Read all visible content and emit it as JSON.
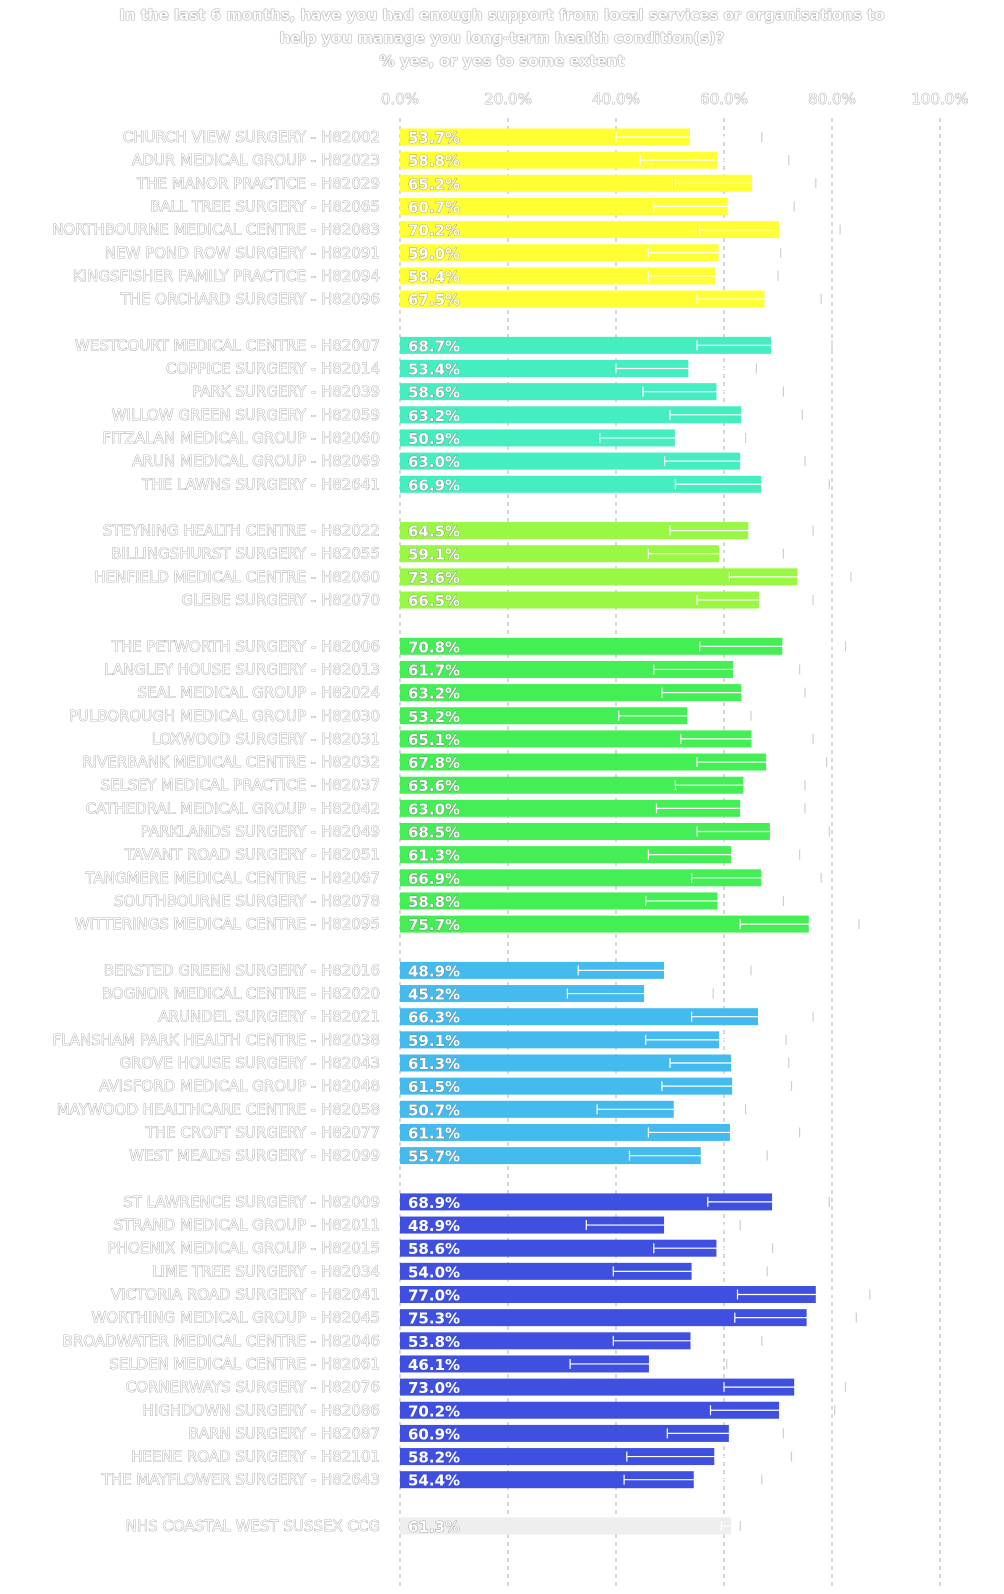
{
  "title": {
    "line1": "In the last 6 months, have you had enough support from local services or organisations to",
    "line2": "help you manage you long-term health condition(s)?",
    "line3": "% yes, or yes to some extent"
  },
  "chart_data": {
    "type": "bar",
    "orientation": "horizontal",
    "error_bars": true,
    "xlim": [
      0,
      100
    ],
    "xticks": [
      "0.0%",
      "20.0%",
      "40.0%",
      "60.0%",
      "80.0%",
      "100.0%"
    ],
    "grid": "vertical dashed",
    "groups": [
      {
        "color": "#ffff33",
        "items": [
          {
            "label": "CHURCH VIEW SURGERY - H82002",
            "value": 53.7,
            "display": "53.7%",
            "lo": 40,
            "hi": 67
          },
          {
            "label": "ADUR MEDICAL GROUP - H82023",
            "value": 58.8,
            "display": "58.8%",
            "lo": 44.5,
            "hi": 72
          },
          {
            "label": "THE MANOR PRACTICE - H82029",
            "value": 65.2,
            "display": "65.2%",
            "lo": 51,
            "hi": 77
          },
          {
            "label": "BALL TREE SURGERY - H82065",
            "value": 60.7,
            "display": "60.7%",
            "lo": 47,
            "hi": 73
          },
          {
            "label": "NORTHBOURNE MEDICAL CENTRE - H82083",
            "value": 70.2,
            "display": "70.2%",
            "lo": 55.5,
            "hi": 81.5
          },
          {
            "label": "NEW POND ROW SURGERY - H82091",
            "value": 59.0,
            "display": "59.0%",
            "lo": 46,
            "hi": 70.5
          },
          {
            "label": "KINGSFISHER FAMILY PRACTICE - H82094",
            "value": 58.4,
            "display": "58.4%",
            "lo": 46,
            "hi": 70
          },
          {
            "label": "THE ORCHARD SURGERY - H82096",
            "value": 67.5,
            "display": "67.5%",
            "lo": 55,
            "hi": 78
          }
        ]
      },
      {
        "color": "#44eec0",
        "items": [
          {
            "label": "WESTCOURT MEDICAL CENTRE - H82007",
            "value": 68.7,
            "display": "68.7%",
            "lo": 55,
            "hi": 80
          },
          {
            "label": "COPPICE SURGERY - H82014",
            "value": 53.4,
            "display": "53.4%",
            "lo": 40,
            "hi": 66
          },
          {
            "label": "PARK SURGERY - H82039",
            "value": 58.6,
            "display": "58.6%",
            "lo": 45,
            "hi": 71
          },
          {
            "label": "WILLOW GREEN SURGERY - H82059",
            "value": 63.2,
            "display": "63.2%",
            "lo": 50,
            "hi": 74.5
          },
          {
            "label": "FITZALAN MEDICAL GROUP - H82060",
            "value": 50.9,
            "display": "50.9%",
            "lo": 37,
            "hi": 64
          },
          {
            "label": "ARUN MEDICAL GROUP - H82069",
            "value": 63.0,
            "display": "63.0%",
            "lo": 49,
            "hi": 75
          },
          {
            "label": "THE LAWNS SURGERY - H82641",
            "value": 66.9,
            "display": "66.9%",
            "lo": 51,
            "hi": 79.5
          }
        ]
      },
      {
        "color": "#99f844",
        "items": [
          {
            "label": "STEYNING HEALTH CENTRE - H82022",
            "value": 64.5,
            "display": "64.5%",
            "lo": 50,
            "hi": 76.5
          },
          {
            "label": "BILLINGSHURST SURGERY - H82055",
            "value": 59.1,
            "display": "59.1%",
            "lo": 46,
            "hi": 71
          },
          {
            "label": "HENFIELD MEDICAL CENTRE - H82060",
            "value": 73.6,
            "display": "73.6%",
            "lo": 61,
            "hi": 83.5
          },
          {
            "label": "GLEBE SURGERY - H82070",
            "value": 66.5,
            "display": "66.5%",
            "lo": 55,
            "hi": 76.5
          }
        ]
      },
      {
        "color": "#44ee55",
        "items": [
          {
            "label": "THE PETWORTH SURGERY - H82006",
            "value": 70.8,
            "display": "70.8%",
            "lo": 55.5,
            "hi": 82.5
          },
          {
            "label": "LANGLEY HOUSE SURGERY - H82013",
            "value": 61.7,
            "display": "61.7%",
            "lo": 47,
            "hi": 74
          },
          {
            "label": "SEAL MEDICAL GROUP - H82024",
            "value": 63.2,
            "display": "63.2%",
            "lo": 48.5,
            "hi": 75
          },
          {
            "label": "PULBOROUGH MEDICAL GROUP - H82030",
            "value": 53.2,
            "display": "53.2%",
            "lo": 40.5,
            "hi": 65
          },
          {
            "label": "LOXWOOD SURGERY - H82031",
            "value": 65.1,
            "display": "65.1%",
            "lo": 52,
            "hi": 76.5
          },
          {
            "label": "RIVERBANK MEDICAL CENTRE - H82032",
            "value": 67.8,
            "display": "67.8%",
            "lo": 55,
            "hi": 79
          },
          {
            "label": "SELSEY MEDICAL PRACTICE - H82037",
            "value": 63.6,
            "display": "63.6%",
            "lo": 51,
            "hi": 75
          },
          {
            "label": "CATHEDRAL MEDICAL GROUP - H82042",
            "value": 63.0,
            "display": "63.0%",
            "lo": 47.5,
            "hi": 75
          },
          {
            "label": "PARKLANDS SURGERY - H82049",
            "value": 68.5,
            "display": "68.5%",
            "lo": 55,
            "hi": 79.5
          },
          {
            "label": "TAVANT ROAD SURGERY - H82051",
            "value": 61.3,
            "display": "61.3%",
            "lo": 46,
            "hi": 74
          },
          {
            "label": "TANGMERE MEDICAL CENTRE - H82067",
            "value": 66.9,
            "display": "66.9%",
            "lo": 54,
            "hi": 78
          },
          {
            "label": "SOUTHBOURNE SURGERY - H82078",
            "value": 58.8,
            "display": "58.8%",
            "lo": 45.5,
            "hi": 71
          },
          {
            "label": "WITTERINGS MEDICAL CENTRE - H82095",
            "value": 75.7,
            "display": "75.7%",
            "lo": 63,
            "hi": 85
          }
        ]
      },
      {
        "color": "#44bbee",
        "items": [
          {
            "label": "BERSTED GREEN SURGERY - H82016",
            "value": 48.9,
            "display": "48.9%",
            "lo": 33,
            "hi": 65
          },
          {
            "label": "BOGNOR MEDICAL CENTRE - H82020",
            "value": 45.2,
            "display": "45.2%",
            "lo": 31,
            "hi": 58
          },
          {
            "label": "ARUNDEL SURGERY - H82021",
            "value": 66.3,
            "display": "66.3%",
            "lo": 54,
            "hi": 76.5
          },
          {
            "label": "FLANSHAM PARK HEALTH CENTRE - H82038",
            "value": 59.1,
            "display": "59.1%",
            "lo": 45.5,
            "hi": 71.5
          },
          {
            "label": "GROVE HOUSE SURGERY - H82043",
            "value": 61.3,
            "display": "61.3%",
            "lo": 50,
            "hi": 72
          },
          {
            "label": "AVISFORD MEDICAL GROUP - H82048",
            "value": 61.5,
            "display": "61.5%",
            "lo": 48.5,
            "hi": 72.5
          },
          {
            "label": "MAYWOOD HEALTHCARE CENTRE - H82058",
            "value": 50.7,
            "display": "50.7%",
            "lo": 36.5,
            "hi": 64
          },
          {
            "label": "THE CROFT SURGERY - H82077",
            "value": 61.1,
            "display": "61.1%",
            "lo": 46,
            "hi": 74
          },
          {
            "label": "WEST MEADS SURGERY - H82099",
            "value": 55.7,
            "display": "55.7%",
            "lo": 42.5,
            "hi": 68
          }
        ]
      },
      {
        "color": "#3f50e0",
        "items": [
          {
            "label": "ST LAWRENCE SURGERY - H82009",
            "value": 68.9,
            "display": "68.9%",
            "lo": 57,
            "hi": 79.5
          },
          {
            "label": "STRAND MEDICAL GROUP - H82011",
            "value": 48.9,
            "display": "48.9%",
            "lo": 34.5,
            "hi": 63
          },
          {
            "label": "PHOENIX MEDICAL GROUP - H82015",
            "value": 58.6,
            "display": "58.6%",
            "lo": 47,
            "hi": 69
          },
          {
            "label": "LIME TREE SURGERY - H82034",
            "value": 54.0,
            "display": "54.0%",
            "lo": 39.5,
            "hi": 68
          },
          {
            "label": "VICTORIA ROAD SURGERY - H82041",
            "value": 77.0,
            "display": "77.0%",
            "lo": 62.5,
            "hi": 87
          },
          {
            "label": "WORTHING MEDICAL GROUP - H82045",
            "value": 75.3,
            "display": "75.3%",
            "lo": 62,
            "hi": 84.5
          },
          {
            "label": "BROADWATER MEDICAL CENTRE - H82046",
            "value": 53.8,
            "display": "53.8%",
            "lo": 39.5,
            "hi": 67
          },
          {
            "label": "SELDEN MEDICAL CENTRE - H82061",
            "value": 46.1,
            "display": "46.1%",
            "lo": 31.5,
            "hi": 60.5
          },
          {
            "label": "CORNERWAYS SURGERY - H82076",
            "value": 73.0,
            "display": "73.0%",
            "lo": 60,
            "hi": 82.5
          },
          {
            "label": "HIGHDOWN SURGERY - H82086",
            "value": 70.2,
            "display": "70.2%",
            "lo": 57.5,
            "hi": 80.5
          },
          {
            "label": "BARN SURGERY - H82087",
            "value": 60.9,
            "display": "60.9%",
            "lo": 49.5,
            "hi": 71
          },
          {
            "label": "HEENE ROAD SURGERY - H82101",
            "value": 58.2,
            "display": "58.2%",
            "lo": 42,
            "hi": 72.5
          },
          {
            "label": "THE MAYFLOWER SURGERY - H82643",
            "value": 54.4,
            "display": "54.4%",
            "lo": 41.5,
            "hi": 67
          }
        ]
      },
      {
        "color": "#eeeeee",
        "items": [
          {
            "label": "NHS COASTAL WEST SUSSEX CCG",
            "value": 61.3,
            "display": "61.3%",
            "lo": 59.5,
            "hi": 63
          }
        ]
      }
    ]
  }
}
